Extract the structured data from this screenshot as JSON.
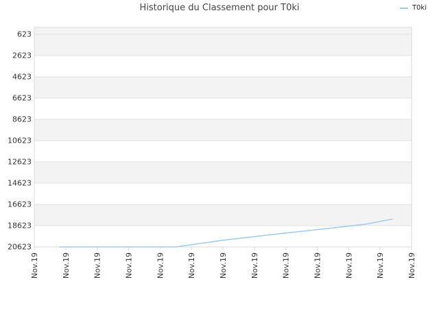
{
  "chart_data": {
    "type": "line",
    "title": "Historique du Classement pour T0ki",
    "xlabel": "",
    "ylabel": "",
    "y_inverted": true,
    "ylim": [
      623,
      20623
    ],
    "y_ticks": [
      623,
      2623,
      4623,
      6623,
      8623,
      10623,
      12623,
      14623,
      16623,
      18623,
      20623
    ],
    "x_ticks": [
      "Nov.19",
      "Nov.19",
      "Nov.19",
      "Nov.19",
      "Nov.19",
      "Nov.19",
      "Nov.19",
      "Nov.19",
      "Nov.19",
      "Nov.19",
      "Nov.19",
      "Nov.19",
      "Nov.19"
    ],
    "grid": true,
    "legend_position": "top-right",
    "series": [
      {
        "name": "T0ki",
        "color": "#9cc9ee",
        "points": [
          {
            "x": 0.8,
            "y": 20623
          },
          {
            "x": 4.5,
            "y": 20623
          },
          {
            "x": 6.0,
            "y": 20000
          },
          {
            "x": 7.5,
            "y": 19480
          },
          {
            "x": 9.0,
            "y": 19000
          },
          {
            "x": 10.5,
            "y": 18500
          },
          {
            "x": 11.4,
            "y": 18000
          }
        ]
      }
    ]
  },
  "colors": {
    "band_fill": "#f3f3f3",
    "grid_line": "#e2e2e2",
    "axis_line": "#d8d8d8",
    "tick_text": "#333333"
  }
}
